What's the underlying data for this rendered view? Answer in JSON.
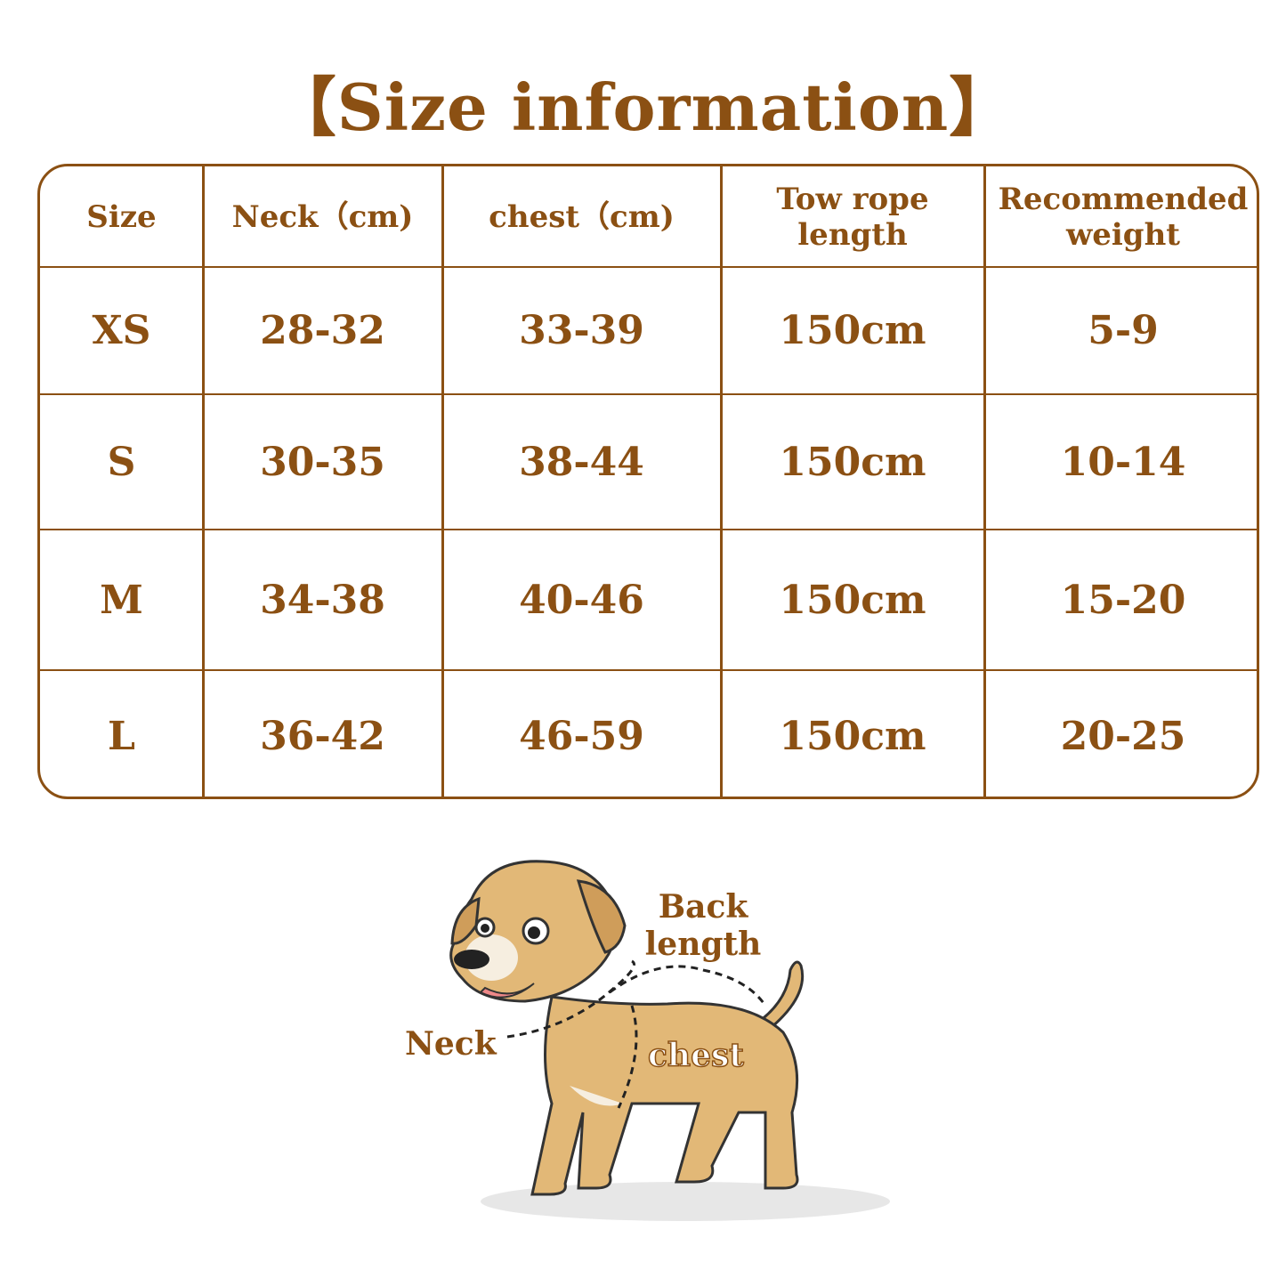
{
  "title": "【Size information】",
  "table": {
    "headers": [
      "Size",
      "Neck（cm)",
      "chest（cm)",
      "Tow rope length",
      "Recommended weight"
    ],
    "rows": [
      [
        "XS",
        "28-32",
        "33-39",
        "150cm",
        "5-9"
      ],
      [
        "S",
        "30-35",
        "38-44",
        "150cm",
        "10-14"
      ],
      [
        "M",
        "34-38",
        "40-46",
        "150cm",
        "15-20"
      ],
      [
        "L",
        "36-42",
        "46-59",
        "150cm",
        "20-25"
      ]
    ]
  },
  "diagram": {
    "back_length_label": "Back length",
    "neck_label": "Neck",
    "chest_label": "chest"
  },
  "colors": {
    "accent": "#8b5013",
    "dog_fur": "#e2b877"
  }
}
